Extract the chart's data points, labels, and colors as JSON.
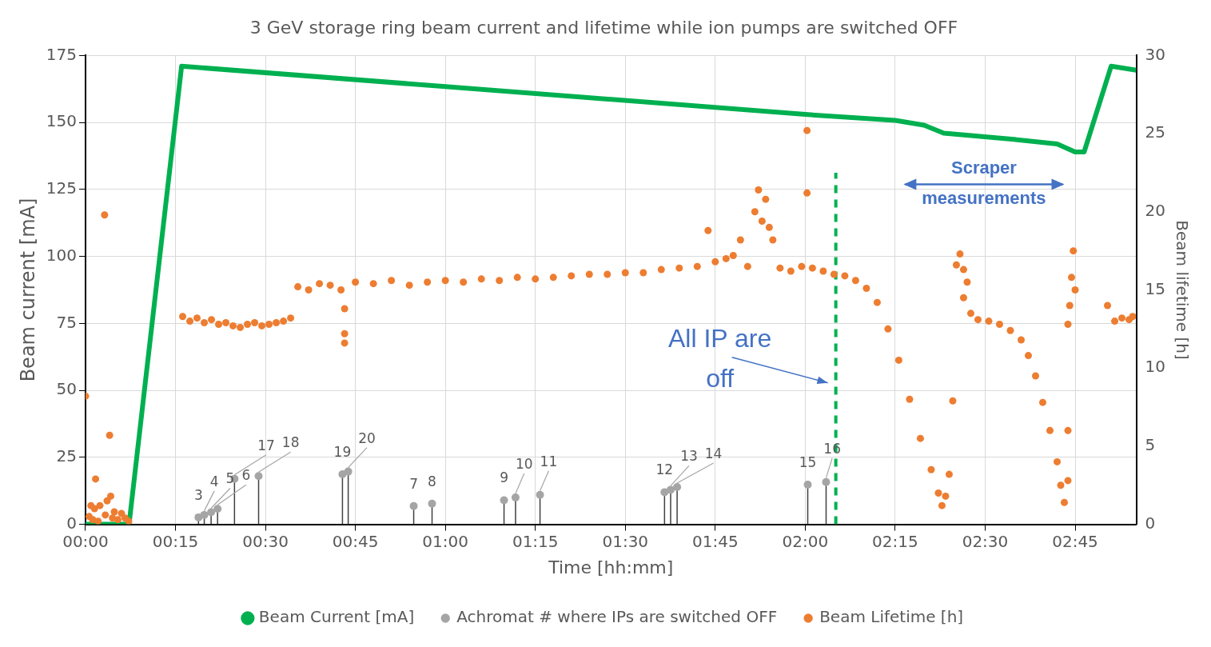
{
  "chart_data": {
    "type": "scatter",
    "title": "3 GeV storage ring beam current and lifetime while ion pumps are switched OFF",
    "xlabel": "Time [hh:mm]",
    "ylabel": "Beam current [mA]",
    "y2label": "Beam lifetime [h]",
    "xlim": [
      0,
      2.92
    ],
    "xticks": [
      {
        "value": 0,
        "label": "00:00"
      },
      {
        "value": 0.25,
        "label": "00:15"
      },
      {
        "value": 0.5,
        "label": "00:30"
      },
      {
        "value": 0.75,
        "label": "00:45"
      },
      {
        "value": 1,
        "label": "01:00"
      },
      {
        "value": 1.25,
        "label": "01:15"
      },
      {
        "value": 1.5,
        "label": "01:30"
      },
      {
        "value": 1.75,
        "label": "01:45"
      },
      {
        "value": 2,
        "label": "02:00"
      },
      {
        "value": 2.25,
        "label": "02:15"
      },
      {
        "value": 2.5,
        "label": "02:30"
      },
      {
        "value": 2.75,
        "label": "02:45"
      }
    ],
    "ylim": [
      0,
      175
    ],
    "yticks": [
      0,
      25,
      50,
      75,
      100,
      125,
      150,
      175
    ],
    "y2lim": [
      0,
      30
    ],
    "y2ticks": [
      0,
      5,
      10,
      15,
      20,
      25,
      30
    ],
    "grid": true,
    "legend": "bottom",
    "marker": "circle",
    "ref_lines": [
      {
        "axis": "x",
        "value": 2.085,
        "color": "#00b050",
        "line_style": "dashed"
      }
    ],
    "annotations": [
      {
        "text": "All IP are off",
        "x": 2.085,
        "y": 54
      },
      "Scraper measurements"
    ],
    "series": [
      {
        "name": "Beam Current [mA]",
        "type": "line",
        "color": "#00b050",
        "marker": "none",
        "x": [
          0,
          0.121,
          0.267,
          1.0,
          2.0,
          2.25,
          2.33,
          2.385,
          2.58,
          2.7,
          2.75,
          2.775,
          2.85,
          2.92
        ],
        "values": [
          0,
          0,
          171,
          163.4,
          153,
          150.8,
          149,
          146,
          143.7,
          142,
          139,
          139,
          171,
          169.5
        ]
      },
      {
        "name": "Achromat # where IPs are switched OFF",
        "type": "lollipop",
        "color": "#a5a5a5",
        "x": [
          0.314,
          0.33,
          0.349,
          0.367,
          0.414,
          0.481,
          0.714,
          0.73,
          0.912,
          0.963,
          1.163,
          1.195,
          1.263,
          1.609,
          1.626,
          1.644,
          2.007,
          2.058
        ],
        "values": [
          2.6,
          3.5,
          4.5,
          5.8,
          17,
          18,
          18.7,
          19.7,
          6.8,
          7.7,
          9,
          10,
          11,
          12,
          12.9,
          13.9,
          14.8,
          15.8
        ],
        "value_labels": [
          "3",
          "4",
          "5",
          "6",
          "17",
          "18",
          "19",
          "20",
          "7",
          "8",
          "9",
          "10",
          "11",
          "12",
          "13",
          "14",
          "15",
          "16"
        ]
      },
      {
        "name": "Beam Lifetime [h]",
        "axis": "y2",
        "color": "#ed7d31",
        "x": [
          0,
          0.01,
          0.015,
          0.02,
          0.025,
          0.028,
          0.035,
          0.04,
          0.053,
          0.055,
          0.06,
          0.067,
          0.07,
          0.075,
          0.08,
          0.09,
          0.1,
          0.11,
          0.12,
          0.27,
          0.29,
          0.31,
          0.33,
          0.35,
          0.37,
          0.39,
          0.41,
          0.43,
          0.45,
          0.47,
          0.49,
          0.51,
          0.53,
          0.55,
          0.57,
          0.59,
          0.62,
          0.65,
          0.68,
          0.71,
          0.72,
          0.72,
          0.72,
          0.75,
          0.8,
          0.85,
          0.9,
          0.95,
          1.0,
          1.05,
          1.1,
          1.15,
          1.2,
          1.25,
          1.3,
          1.35,
          1.4,
          1.45,
          1.5,
          1.55,
          1.6,
          1.65,
          1.7,
          1.73,
          1.75,
          1.78,
          1.8,
          1.82,
          1.84,
          1.86,
          1.87,
          1.88,
          1.89,
          1.9,
          1.91,
          1.93,
          1.96,
          1.99,
          2.005,
          2.005,
          2.02,
          2.05,
          2.08,
          2.11,
          2.14,
          2.17,
          2.2,
          2.23,
          2.26,
          2.29,
          2.32,
          2.35,
          2.37,
          2.38,
          2.39,
          2.4,
          2.41,
          2.42,
          2.43,
          2.44,
          2.44,
          2.45,
          2.46,
          2.48,
          2.51,
          2.54,
          2.57,
          2.6,
          2.62,
          2.64,
          2.66,
          2.68,
          2.7,
          2.71,
          2.72,
          2.73,
          2.73,
          2.73,
          2.735,
          2.74,
          2.745,
          2.75,
          2.84,
          2.86,
          2.88,
          2.9,
          2.91
        ],
        "values": [
          8.2,
          0.5,
          1.2,
          0.3,
          1.0,
          2.9,
          0.2,
          1.2,
          19.8,
          0.6,
          1.5,
          5.7,
          1.8,
          0.4,
          0.8,
          0.3,
          0.7,
          0.4,
          0.2,
          13.3,
          13.0,
          13.2,
          12.9,
          13.1,
          12.8,
          12.9,
          12.7,
          12.6,
          12.8,
          12.9,
          12.7,
          12.8,
          12.9,
          13.0,
          13.2,
          15.2,
          15.0,
          15.4,
          15.3,
          15.0,
          13.8,
          12.2,
          11.6,
          15.5,
          15.4,
          15.6,
          15.3,
          15.5,
          15.6,
          15.5,
          15.7,
          15.6,
          15.8,
          15.7,
          15.8,
          15.9,
          16.0,
          16.0,
          16.1,
          16.1,
          16.3,
          16.4,
          16.5,
          18.8,
          16.8,
          17.0,
          17.2,
          18.2,
          16.5,
          20.0,
          21.4,
          19.4,
          20.8,
          19.0,
          18.2,
          16.4,
          16.2,
          16.5,
          25.2,
          21.2,
          16.4,
          16.2,
          16.0,
          15.9,
          15.6,
          15.1,
          14.2,
          12.5,
          10.5,
          8.0,
          5.5,
          3.5,
          2.0,
          1.2,
          1.8,
          3.2,
          7.9,
          16.6,
          17.3,
          16.3,
          14.5,
          15.5,
          13.5,
          13.1,
          13.0,
          12.8,
          12.4,
          11.8,
          10.8,
          9.5,
          7.8,
          6.0,
          4.0,
          2.5,
          1.4,
          2.8,
          6.0,
          12.8,
          14.0,
          15.8,
          17.5,
          15.0,
          14.0,
          13.0,
          13.2,
          13.1,
          13.3
        ]
      }
    ]
  }
}
